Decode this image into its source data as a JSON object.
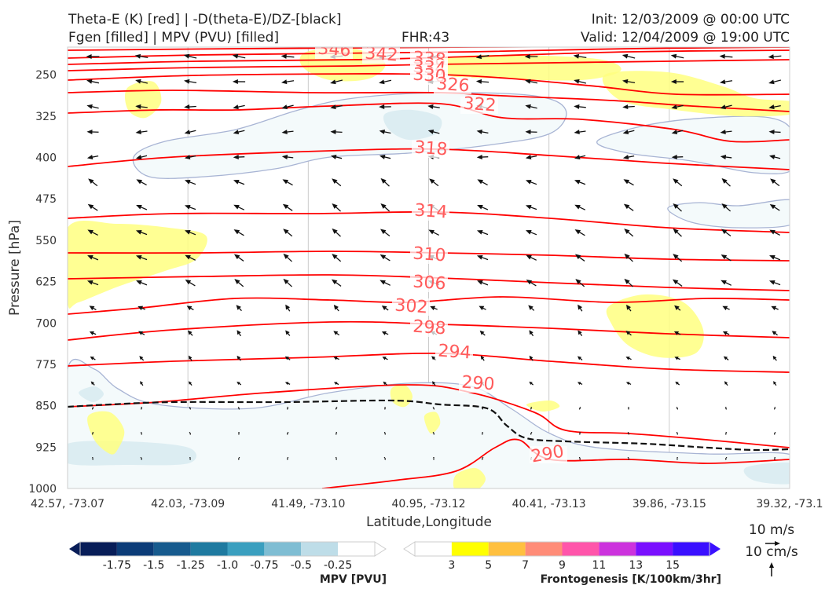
{
  "header": {
    "title_line1": "Theta-E (K) [red] | -D(theta-E)/DZ-[black]",
    "title_line2": "Fgen [filled] | MPV (PVU) [filled]",
    "fhr": "FHR:43",
    "init": "Init: 12/03/2009 @ 00:00 UTC",
    "valid": "Valid: 12/04/2009 @ 19:00 UTC"
  },
  "colors": {
    "theta_e": "#ff0000",
    "theta_e_label": "#ff5a5a",
    "wind": "#111111",
    "mpv_outline": "#a8b4d4",
    "mpv_fill": [
      "#f4fafb",
      "#dcedf2"
    ],
    "fgen_fill": "#ffff80"
  },
  "chart_data": {
    "type": "cross-section",
    "xlabel": "Latitude,Longitude",
    "ylabel": "Pressure [hPa]",
    "ylim": [
      1000,
      200
    ],
    "x_ticks": [
      "42.57, -73.07",
      "42.03, -73.09",
      "41.49, -73.10",
      "40.95, -73.12",
      "40.41, -73.13",
      "39.86, -73.15",
      "39.32, -73.1"
    ],
    "y_ticks": [
      250,
      325,
      400,
      475,
      550,
      625,
      700,
      775,
      850,
      925,
      1000
    ],
    "theta_e_contour_labels": [
      "346",
      "342",
      "338",
      "334",
      "330",
      "326",
      "322",
      "318",
      "314",
      "310",
      "306",
      "302",
      "298",
      "294",
      "290",
      "290"
    ],
    "theta_e_levels": [
      346,
      342,
      338,
      334,
      330,
      326,
      322,
      318,
      314,
      310,
      306,
      302,
      298,
      294,
      290
    ],
    "wind_reference": {
      "label_u": "10 m/s",
      "label_w": "10 cm/s"
    },
    "colorbars": [
      {
        "title": "MPV [PVU]",
        "labels": [
          "-1.75",
          "-1.5",
          "-1.25",
          "-1.0",
          "-0.75",
          "-0.5",
          "-0.25"
        ],
        "colors": [
          "#081d58",
          "#0c3c78",
          "#175b8e",
          "#1f7aa0",
          "#3b9fbf",
          "#7fbdd3",
          "#bedde8",
          "#ffffff"
        ]
      },
      {
        "title": "Frontogenesis [K/100km/3hr]",
        "labels": [
          "3",
          "5",
          "7",
          "9",
          "11",
          "13",
          "15"
        ],
        "colors": [
          "#ffffff",
          "#ffff00",
          "#ffc040",
          "#ff8c78",
          "#ff55aa",
          "#cc33dd",
          "#7a10ff",
          "#3a10ff"
        ]
      }
    ]
  }
}
